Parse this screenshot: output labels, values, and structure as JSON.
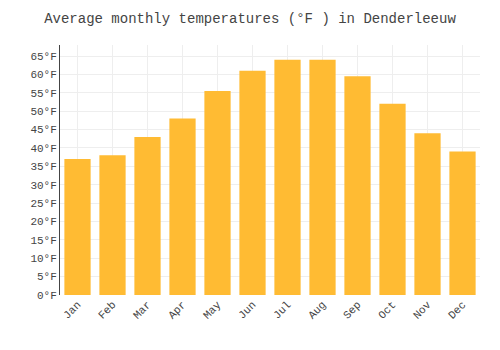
{
  "chart_data": {
    "type": "bar",
    "title": "Average monthly temperatures (°F ) in Denderleeuw",
    "categories": [
      "Jan",
      "Feb",
      "Mar",
      "Apr",
      "May",
      "Jun",
      "Jul",
      "Aug",
      "Sep",
      "Oct",
      "Nov",
      "Dec"
    ],
    "values": [
      37,
      38,
      43,
      48,
      55.5,
      61,
      64,
      64,
      59.5,
      52,
      44,
      39
    ],
    "color": "#FFBB33",
    "ylim": [
      0,
      68
    ],
    "yticks": [
      {
        "value": 0,
        "label": "0°F"
      },
      {
        "value": 5,
        "label": "5°F"
      },
      {
        "value": 10,
        "label": "10°F"
      },
      {
        "value": 15,
        "label": "15°F"
      },
      {
        "value": 20,
        "label": "20°F"
      },
      {
        "value": 25,
        "label": "25°F"
      },
      {
        "value": 30,
        "label": "30°F"
      },
      {
        "value": 35,
        "label": "35°F"
      },
      {
        "value": 40,
        "label": "40°F"
      },
      {
        "value": 45,
        "label": "45°F"
      },
      {
        "value": 50,
        "label": "50°F"
      },
      {
        "value": 55,
        "label": "55°F"
      },
      {
        "value": 60,
        "label": "60°F"
      },
      {
        "value": 65,
        "label": "65°F"
      }
    ],
    "grid": true
  }
}
